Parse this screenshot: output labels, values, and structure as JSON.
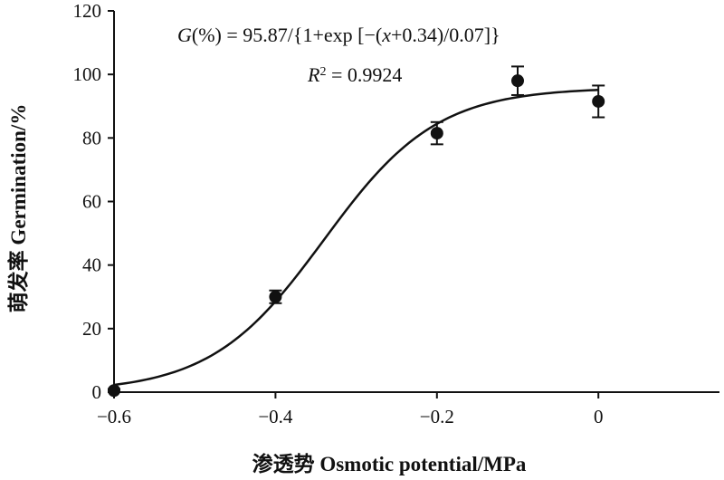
{
  "chart_data": {
    "type": "scatter",
    "xlabel": "渗透势 Osmotic potential/MPa",
    "ylabel": "萌发率 Germination/%",
    "xlim": [
      -0.6,
      0.15
    ],
    "ylim": [
      0,
      120
    ],
    "x_ticks": [
      -0.6,
      -0.4,
      -0.2,
      0
    ],
    "x_tick_labels": [
      "−0.6",
      "−0.4",
      "−0.2",
      "0"
    ],
    "y_ticks": [
      0,
      20,
      40,
      60,
      80,
      100,
      120
    ],
    "y_tick_labels": [
      "0",
      "20",
      "40",
      "60",
      "80",
      "100",
      "120"
    ],
    "grid": false,
    "series": [
      {
        "points": [
          {
            "x": -0.6,
            "y": 0.5,
            "err": 0.5
          },
          {
            "x": -0.4,
            "y": 30.0,
            "err": 2.0
          },
          {
            "x": -0.2,
            "y": 81.5,
            "err": 3.5
          },
          {
            "x": -0.1,
            "y": 98.0,
            "err": 4.5
          },
          {
            "x": 0.0,
            "y": 91.5,
            "err": 5.0
          }
        ]
      }
    ],
    "fit": {
      "type": "sigmoid",
      "a": 95.87,
      "x0": -0.34,
      "b": 0.07,
      "x_range": [
        -0.6,
        0.0
      ]
    },
    "annotations": {
      "equation_G": "G",
      "equation_rest": "(%) = 95.87/{1+exp [−(",
      "equation_x": "x",
      "equation_tail": "+0.34)/0.07]}",
      "r2_R": "R",
      "r2_sup": "2",
      "r2_rest": " = 0.9924"
    },
    "colors": {
      "points": "#111111",
      "curve": "#111111",
      "axis": "#111111"
    }
  }
}
